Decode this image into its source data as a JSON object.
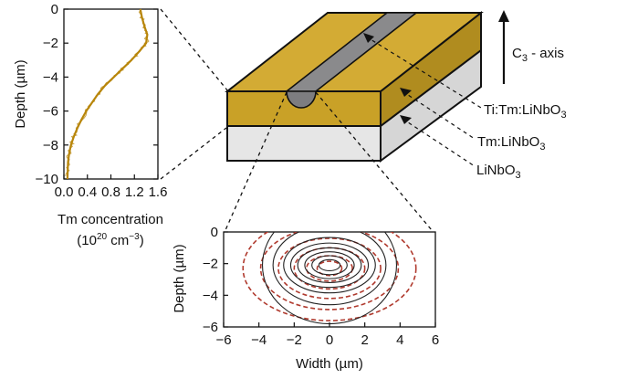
{
  "colors": {
    "gold": "#c9a127",
    "gold_dark": "#a7851d",
    "gold_top": "#d3ab34",
    "substrate_top": "#f1f1f1",
    "substrate_front": "#e6e6e6",
    "substrate_side": "#d4d4d4",
    "stripe": "#8a8a8c",
    "stripe_side": "#6e6e70",
    "profile_line": "#b8860b",
    "mode_dashed": "#b03a2e",
    "mode_solid": "#222222"
  },
  "profile_plot": {
    "ylabel": "Depth (µm)",
    "xlabel_line1": "Tm concentration",
    "xlabel_line2_a": "(10",
    "xlabel_line2_sup1": "20",
    "xlabel_line2_b": " cm",
    "xlabel_line2_sup2": "−3",
    "xlabel_line2_c": ")",
    "yticks": [
      "0",
      "−2",
      "−4",
      "−6",
      "−8",
      "−10"
    ],
    "xticks": [
      "0.0",
      "0.4",
      "0.8",
      "1.2",
      "1.6"
    ]
  },
  "mode_plot": {
    "ylabel": "Depth (µm)",
    "xlabel": "Width (µm)",
    "yticks": [
      "0",
      "−2",
      "−4",
      "−6"
    ],
    "xticks": [
      "−6",
      "−4",
      "−2",
      "0",
      "2",
      "4",
      "6"
    ]
  },
  "diagram": {
    "axis_label": "C",
    "axis_sub": "3",
    "axis_suffix": " - axis",
    "layer1_a": "Ti:Tm:LiNbO",
    "layer1_sub": "3",
    "layer2_a": "Tm:LiNbO",
    "layer2_sub": "3",
    "layer3_a": "LiNbO",
    "layer3_sub": "3"
  },
  "chart_data": [
    {
      "type": "line",
      "xlabel": "Tm concentration (10^20 cm^-3)",
      "ylabel": "Depth (µm)",
      "xlim": [
        0,
        1.6
      ],
      "ylim": [
        -10,
        0
      ],
      "series": [
        {
          "x": [
            1.3,
            1.33,
            1.37,
            1.42,
            1.4,
            1.28,
            1.15,
            1.0,
            0.85,
            0.7,
            0.58,
            0.48,
            0.38,
            0.3,
            0.23,
            0.17,
            0.12,
            0.09,
            0.07,
            0.06
          ],
          "y": [
            0,
            -0.5,
            -1,
            -1.5,
            -2,
            -2.5,
            -3,
            -3.5,
            -4,
            -4.5,
            -5,
            -5.5,
            -6,
            -6.5,
            -7,
            -7.5,
            -8,
            -8.5,
            -9,
            -10
          ]
        }
      ]
    },
    {
      "type": "contour",
      "xlabel": "Width (µm)",
      "ylabel": "Depth (µm)",
      "xlim": [
        -6,
        6
      ],
      "ylim": [
        -6,
        0
      ],
      "solid_center": [
        0,
        -2.1
      ],
      "solid_levels_semi_axes": [
        [
          0.6,
          0.35
        ],
        [
          1.0,
          0.6
        ],
        [
          1.4,
          0.85
        ],
        [
          1.8,
          1.1
        ],
        [
          2.2,
          1.4
        ],
        [
          2.6,
          1.75
        ],
        [
          3.2,
          2.5
        ],
        [
          3.8,
          3.7
        ]
      ],
      "dashed_center": [
        0,
        -2.3
      ],
      "dashed_levels_semi_axes": [
        [
          0.7,
          0.45
        ],
        [
          1.3,
          0.8
        ],
        [
          2.0,
          1.3
        ],
        [
          2.9,
          1.9
        ],
        [
          3.9,
          2.6
        ],
        [
          4.9,
          3.3
        ]
      ]
    }
  ]
}
